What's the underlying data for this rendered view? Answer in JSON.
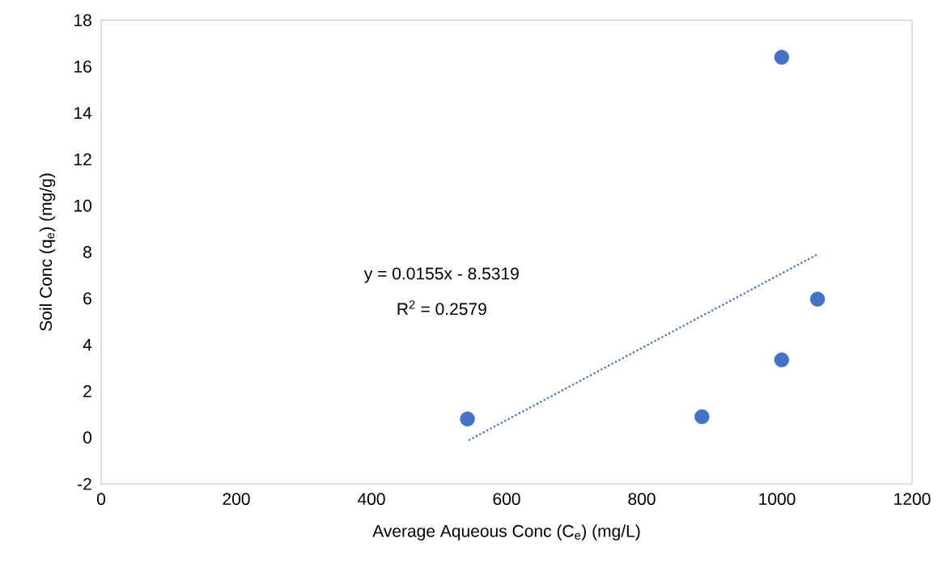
{
  "chart_data": {
    "type": "scatter",
    "xlabel": "Average Aqueous Conc (C$_{e}$)  (mg/L)",
    "ylabel": "Soil Conc (q$_{e}$) (mg/g)",
    "xlim": [
      0,
      1200
    ],
    "ylim": [
      -2,
      18
    ],
    "xticks": [
      0,
      200,
      400,
      600,
      800,
      1000,
      1200
    ],
    "yticks": [
      -2,
      0,
      2,
      4,
      6,
      8,
      10,
      12,
      14,
      16,
      18
    ],
    "grid": false,
    "series": [
      {
        "color": "#4472c4",
        "marker": "circle",
        "x": [
          542,
          889,
          1007,
          1007,
          1060
        ],
        "values": [
          0.8,
          0.9,
          3.35,
          16.4,
          5.97
        ]
      },
      {
        "type": "line",
        "color": "#4472c4",
        "marker": "none",
        "line_style": "dotted",
        "x": [
          545,
          1060
        ],
        "values": [
          -0.1,
          7.9
        ]
      }
    ],
    "annotations": [
      "y = 0.0155x - 8.5319",
      "R$^{2}$ = 0.2579"
    ]
  }
}
